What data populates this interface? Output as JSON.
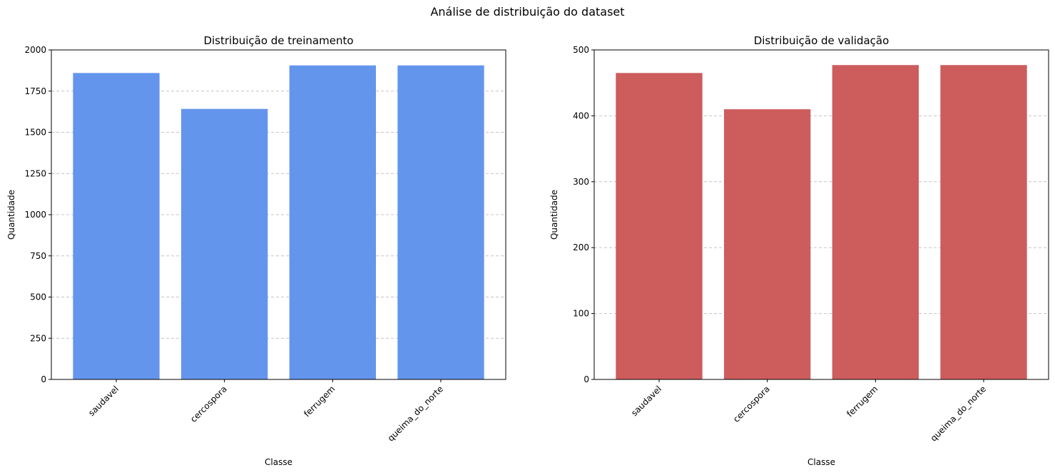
{
  "suptitle": "Análise de distribuição do dataset",
  "chart_data": [
    {
      "type": "bar",
      "title": "Distribuição de treinamento",
      "xlabel": "Classe",
      "ylabel": "Quantidade",
      "categories": [
        "saudavel",
        "cercospora",
        "ferrugem",
        "queima_do_norte"
      ],
      "values": [
        1860,
        1642,
        1906,
        1906
      ],
      "ylim": [
        0,
        2000
      ],
      "yticks": [
        0,
        250,
        500,
        750,
        1000,
        1250,
        1500,
        1750,
        2000
      ],
      "grid": "y-dashed",
      "color": "#6495ED"
    },
    {
      "type": "bar",
      "title": "Distribuição de validação",
      "xlabel": "Classe",
      "ylabel": "Quantidade",
      "categories": [
        "saudavel",
        "cercospora",
        "ferrugem",
        "queima_do_norte"
      ],
      "values": [
        465,
        410,
        477,
        477
      ],
      "ylim": [
        0,
        500
      ],
      "yticks": [
        0,
        100,
        200,
        300,
        400,
        500
      ],
      "grid": "y-dashed",
      "color": "#CD5C5C"
    }
  ]
}
